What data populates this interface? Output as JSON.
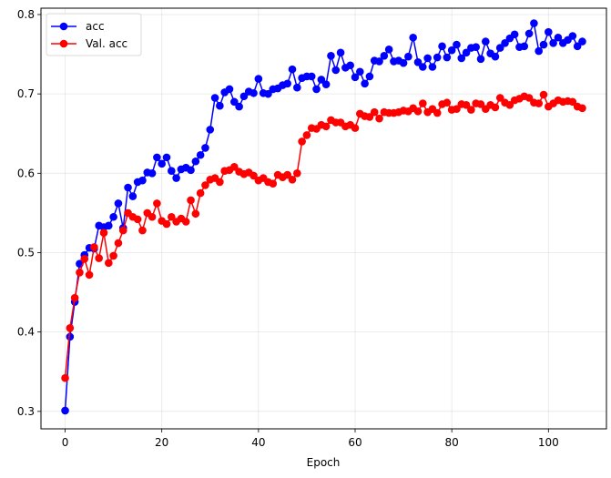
{
  "chart_data": {
    "type": "line",
    "xlabel": "Epoch",
    "ylabel": "",
    "xlim": [
      -5,
      112
    ],
    "ylim": [
      0.278,
      0.808
    ],
    "xticks": [
      0,
      20,
      40,
      60,
      80,
      100
    ],
    "yticks": [
      0.3,
      0.4,
      0.5,
      0.6,
      0.7,
      0.8
    ],
    "xtick_labels": [
      "0",
      "20",
      "40",
      "60",
      "80",
      "100"
    ],
    "ytick_labels": [
      "0.3",
      "0.4",
      "0.5",
      "0.6",
      "0.7",
      "0.8"
    ],
    "grid": true,
    "legend_position": "top-left",
    "series": [
      {
        "name": "acc",
        "color": "#0000ff",
        "marker": "circle",
        "values": [
          0.301,
          0.394,
          0.438,
          0.486,
          0.497,
          0.506,
          0.505,
          0.534,
          0.532,
          0.534,
          0.545,
          0.562,
          0.531,
          0.582,
          0.571,
          0.589,
          0.591,
          0.601,
          0.6,
          0.62,
          0.612,
          0.62,
          0.603,
          0.594,
          0.605,
          0.607,
          0.604,
          0.615,
          0.623,
          0.632,
          0.655,
          0.695,
          0.685,
          0.702,
          0.706,
          0.69,
          0.684,
          0.697,
          0.703,
          0.701,
          0.719,
          0.701,
          0.7,
          0.706,
          0.707,
          0.711,
          0.713,
          0.731,
          0.708,
          0.72,
          0.722,
          0.722,
          0.706,
          0.718,
          0.712,
          0.748,
          0.73,
          0.752,
          0.733,
          0.736,
          0.721,
          0.728,
          0.713,
          0.722,
          0.742,
          0.741,
          0.748,
          0.756,
          0.741,
          0.742,
          0.739,
          0.747,
          0.771,
          0.74,
          0.734,
          0.745,
          0.734,
          0.746,
          0.76,
          0.746,
          0.755,
          0.762,
          0.745,
          0.752,
          0.758,
          0.759,
          0.744,
          0.766,
          0.751,
          0.747,
          0.758,
          0.764,
          0.77,
          0.775,
          0.759,
          0.76,
          0.776,
          0.789,
          0.754,
          0.762,
          0.778,
          0.764,
          0.771,
          0.764,
          0.768,
          0.773,
          0.76,
          0.766
        ]
      },
      {
        "name": "Val. acc",
        "color": "#ff0000",
        "marker": "circle",
        "values": [
          0.342,
          0.405,
          0.443,
          0.475,
          0.492,
          0.472,
          0.507,
          0.493,
          0.525,
          0.487,
          0.496,
          0.512,
          0.528,
          0.55,
          0.545,
          0.542,
          0.528,
          0.55,
          0.545,
          0.562,
          0.54,
          0.536,
          0.545,
          0.539,
          0.543,
          0.539,
          0.566,
          0.549,
          0.575,
          0.585,
          0.592,
          0.594,
          0.589,
          0.603,
          0.604,
          0.608,
          0.602,
          0.599,
          0.601,
          0.597,
          0.591,
          0.594,
          0.589,
          0.587,
          0.598,
          0.595,
          0.598,
          0.592,
          0.6,
          0.64,
          0.648,
          0.657,
          0.656,
          0.661,
          0.659,
          0.667,
          0.664,
          0.664,
          0.659,
          0.661,
          0.657,
          0.675,
          0.672,
          0.671,
          0.677,
          0.669,
          0.677,
          0.676,
          0.676,
          0.677,
          0.679,
          0.678,
          0.682,
          0.678,
          0.688,
          0.677,
          0.681,
          0.676,
          0.687,
          0.689,
          0.68,
          0.681,
          0.687,
          0.686,
          0.68,
          0.688,
          0.687,
          0.681,
          0.686,
          0.683,
          0.695,
          0.689,
          0.686,
          0.692,
          0.694,
          0.697,
          0.695,
          0.689,
          0.688,
          0.699,
          0.684,
          0.688,
          0.692,
          0.69,
          0.691,
          0.69,
          0.684,
          0.682
        ]
      }
    ]
  }
}
